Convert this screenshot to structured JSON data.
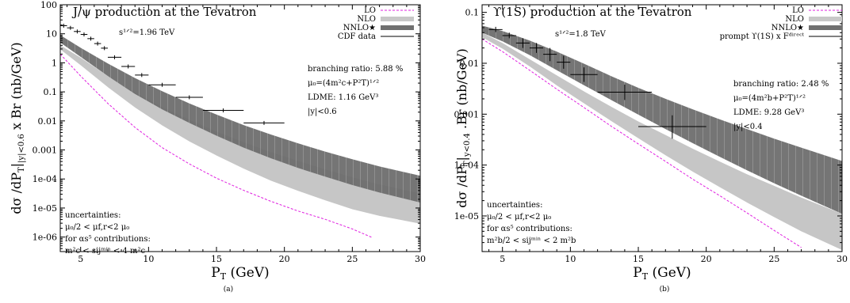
{
  "chart_data": [
    {
      "type": "line",
      "panel_label": "(a)",
      "title": "J/ψ production at the Tevatron",
      "energy": "s¹ᐟ²=1.96 TeV",
      "xlabel": "P",
      "xlabel_sub": "T",
      "xlabel_unit": " (GeV)",
      "ylabel": "dσ /dP",
      "ylabel_sub": "T",
      "ylabel_mid": "|",
      "ylabel_sub2": "|y|<0.6",
      "ylabel_tail": " x Br  (nb/GeV)",
      "xlim": [
        3.5,
        30
      ],
      "ylim_log10": [
        -6.5,
        2
      ],
      "x_ticks": [
        5,
        10,
        15,
        20,
        25,
        30
      ],
      "y_ticks": [
        {
          "value": 100,
          "label": "100"
        },
        {
          "value": 10,
          "label": "10"
        },
        {
          "value": 1,
          "label": "1"
        },
        {
          "value": 0.1,
          "label": "0.1"
        },
        {
          "value": 0.01,
          "label": "0.01"
        },
        {
          "value": 0.001,
          "label": "0.001"
        },
        {
          "value": 0.0001,
          "label": "1e-04"
        },
        {
          "value": 1e-05,
          "label": "1e-05"
        },
        {
          "value": 1e-06,
          "label": "1e-06"
        }
      ],
      "legend": [
        {
          "name": "LO",
          "style": "dashed",
          "color": "#e020e0"
        },
        {
          "name": "NLO",
          "style": "band",
          "color": "#c8c8c8"
        },
        {
          "name": "NNLO★",
          "style": "band",
          "color": "#707070"
        },
        {
          "name": "CDF data",
          "style": "line",
          "color": "#000000"
        }
      ],
      "annotations_right": [
        "branching ratio: 5.88 %",
        "μ₀=(4m²c+P²T)¹ᐟ²",
        "LDME: 1.16 GeV³",
        "|y|<0.6"
      ],
      "annotations_left": [
        "uncertainties:",
        "μ₀/2 < μf,r<2 μ₀",
        "for αs⁵ contributions:",
        "m²c < sijᵐⁱⁿ < 4 m²c"
      ],
      "series": [
        {
          "name": "LO",
          "x": [
            3.5,
            5,
            7,
            9,
            11,
            13,
            15,
            17,
            19,
            21,
            23,
            25,
            26.5
          ],
          "values": [
            2,
            0.35,
            0.04,
            0.006,
            0.0012,
            0.00033,
            0.000107,
            4.05e-05,
            1.71e-05,
            7.9e-06,
            4.1e-06,
            1.9e-06,
            9.5e-07
          ]
        },
        {
          "name": "NLO",
          "x": [
            3.5,
            5,
            7,
            9,
            11,
            13,
            15,
            17,
            19,
            21,
            23,
            25,
            27,
            30
          ],
          "upper": [
            4.0,
            1.5,
            0.35,
            0.095,
            0.03,
            0.011,
            0.0043,
            0.00185,
            0.00085,
            0.00042,
            0.000215,
            0.000115,
            6.5e-05,
            3.2e-05
          ],
          "lower": [
            2.8,
            0.8,
            0.14,
            0.028,
            0.0068,
            0.0019,
            0.00062,
            0.00022,
            8.5e-05,
            3.8e-05,
            1.78e-05,
            8.8e-06,
            5.2e-06,
            2.8e-06
          ]
        },
        {
          "name": "NNLO★",
          "x": [
            3.5,
            5,
            7,
            9,
            11,
            13,
            15,
            17,
            19,
            21,
            23,
            25,
            27,
            30
          ],
          "upper": [
            9.0,
            3.3,
            0.95,
            0.3,
            0.105,
            0.04,
            0.0165,
            0.0072,
            0.0034,
            0.0017,
            0.00088,
            0.00048,
            0.00027,
            0.00013
          ],
          "lower": [
            5.0,
            1.6,
            0.35,
            0.085,
            0.025,
            0.0085,
            0.0031,
            0.0012,
            0.00052,
            0.00024,
            0.00012,
            6.2e-05,
            3.4e-05,
            1.55e-05
          ]
        },
        {
          "name": "CDF data",
          "points": [
            {
              "x": 3.75,
              "y": 19,
              "xerr": 0.25
            },
            {
              "x": 4.25,
              "y": 16,
              "xerr": 0.25
            },
            {
              "x": 4.75,
              "y": 12,
              "xerr": 0.25
            },
            {
              "x": 5.25,
              "y": 9.5,
              "xerr": 0.25
            },
            {
              "x": 5.75,
              "y": 6.8,
              "xerr": 0.25
            },
            {
              "x": 6.25,
              "y": 4.6,
              "xerr": 0.25
            },
            {
              "x": 6.75,
              "y": 3.2,
              "xerr": 0.25
            },
            {
              "x": 7.5,
              "y": 1.55,
              "xerr": 0.5
            },
            {
              "x": 8.5,
              "y": 0.75,
              "xerr": 0.5
            },
            {
              "x": 9.5,
              "y": 0.38,
              "xerr": 0.5
            },
            {
              "x": 11,
              "y": 0.175,
              "xerr": 1
            },
            {
              "x": 13,
              "y": 0.065,
              "xerr": 1
            },
            {
              "x": 15.5,
              "y": 0.023,
              "xerr": 1.5
            },
            {
              "x": 18.5,
              "y": 0.0085,
              "xerr": 1.5
            }
          ]
        }
      ]
    },
    {
      "type": "line",
      "panel_label": "(b)",
      "title": "ϒ(1S) production at the Tevatron",
      "energy": "s¹ᐟ²=1.8 TeV",
      "xlabel": "P",
      "xlabel_sub": "T",
      "xlabel_unit": " (GeV)",
      "ylabel": "dσ /dP",
      "ylabel_sub": "T",
      "ylabel_mid": "|",
      "ylabel_sub2": "y<0.4",
      "ylabel_tail": " .Br  (nb/GeV)",
      "xlim": [
        3.5,
        30
      ],
      "ylim_log10": [
        -5.7,
        -0.85
      ],
      "x_ticks": [
        5,
        10,
        15,
        20,
        25,
        30
      ],
      "x_tick_labels": [
        "5",
        "10",
        "15",
        "20",
        "25",
        "30"
      ],
      "y_ticks": [
        {
          "value": 0.1,
          "label": "0.1"
        },
        {
          "value": 0.01,
          "label": "0.01"
        },
        {
          "value": 0.001,
          "label": "0.001"
        },
        {
          "value": 0.0001,
          "label": "1e-04"
        },
        {
          "value": 1e-05,
          "label": "1e-05"
        }
      ],
      "legend": [
        {
          "name": "LO",
          "style": "dashed",
          "color": "#e020e0"
        },
        {
          "name": "NLO",
          "style": "band",
          "color": "#c8c8c8"
        },
        {
          "name": "NNLO★",
          "style": "band",
          "color": "#707070"
        },
        {
          "name": "prompt ϒ(1S) x Fᵈⁱʳᵉᶜᵗ",
          "style": "line",
          "color": "#000000"
        }
      ],
      "annotations_right": [
        "branching ratio: 2.48 %",
        "μ₀=(4m²b+P²T)¹ᐟ²",
        "LDME: 9.28 GeV³",
        "|y|<0.4"
      ],
      "annotations_left": [
        "uncertainties:",
        "μ₀/2 < μf,r<2 μ₀",
        "for αs⁵ contributions:",
        "m²b/2 < sijᵐⁱⁿ < 2 m²b"
      ],
      "series": [
        {
          "name": "LO",
          "x": [
            3.5,
            5,
            7,
            9,
            11,
            13,
            15,
            17,
            19,
            21,
            23,
            25,
            27
          ],
          "values": [
            0.03,
            0.017,
            0.0073,
            0.0031,
            0.00135,
            0.00058,
            0.00026,
            0.000118,
            5.3e-05,
            2.5e-05,
            1.15e-05,
            5.2e-06,
            2.4e-06
          ]
        },
        {
          "name": "NLO",
          "x": [
            3.5,
            5,
            7,
            9,
            11,
            13,
            15,
            17,
            19,
            21,
            23,
            25,
            27,
            30
          ],
          "upper": [
            0.04,
            0.025,
            0.012,
            0.0058,
            0.0028,
            0.0014,
            0.00072,
            0.00039,
            0.00021,
            0.000117,
            6.6e-05,
            3.9e-05,
            2.3e-05,
            1.1e-05
          ],
          "lower": [
            0.032,
            0.019,
            0.0085,
            0.0036,
            0.0016,
            0.00072,
            0.00033,
            0.000153,
            7.3e-05,
            3.6e-05,
            1.8e-05,
            9.3e-06,
            4.9e-06,
            2.1e-06
          ]
        },
        {
          "name": "NNLO★",
          "x": [
            3.5,
            5,
            7,
            9,
            11,
            13,
            15,
            17,
            19,
            21,
            23,
            25,
            27,
            30
          ],
          "upper": [
            0.055,
            0.043,
            0.028,
            0.017,
            0.0098,
            0.0056,
            0.0033,
            0.002,
            0.00125,
            0.00079,
            0.00051,
            0.00033,
            0.00022,
            0.00012
          ],
          "lower": [
            0.04,
            0.027,
            0.0145,
            0.0073,
            0.0037,
            0.0019,
            0.00098,
            0.00051,
            0.00027,
            0.000145,
            7.9e-05,
            4.4e-05,
            2.5e-05,
            1.1e-05
          ]
        },
        {
          "name": "prompt ϒ(1S) x Fᵈⁱʳᵉᶜᵗ",
          "points": [
            {
              "x": 4.5,
              "y": 0.046,
              "xerr": 0.5,
              "ylo": 0.041,
              "yhi": 0.052
            },
            {
              "x": 5.5,
              "y": 0.035,
              "xerr": 0.5,
              "ylo": 0.031,
              "yhi": 0.04
            },
            {
              "x": 6.5,
              "y": 0.025,
              "xerr": 0.5,
              "ylo": 0.02,
              "yhi": 0.031
            },
            {
              "x": 7.5,
              "y": 0.02,
              "xerr": 0.5,
              "ylo": 0.016,
              "yhi": 0.025
            },
            {
              "x": 8.5,
              "y": 0.015,
              "xerr": 0.5,
              "ylo": 0.011,
              "yhi": 0.02
            },
            {
              "x": 9.5,
              "y": 0.0105,
              "xerr": 0.5,
              "ylo": 0.0078,
              "yhi": 0.014
            },
            {
              "x": 11,
              "y": 0.006,
              "xerr": 1,
              "ylo": 0.0043,
              "yhi": 0.0083
            },
            {
              "x": 14,
              "y": 0.0027,
              "xerr": 2,
              "ylo": 0.0019,
              "yhi": 0.0038
            },
            {
              "x": 17.5,
              "y": 0.00057,
              "xerr": 2.5,
              "ylo": 0.00033,
              "yhi": 0.00095
            }
          ]
        }
      ]
    }
  ]
}
